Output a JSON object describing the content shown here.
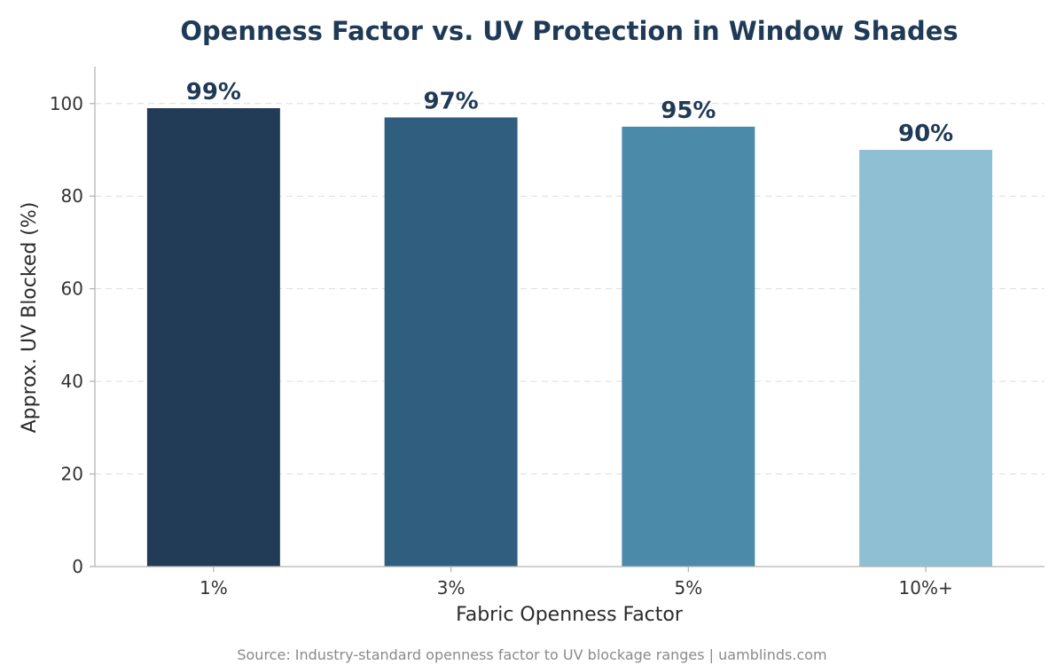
{
  "chart_data": {
    "type": "bar",
    "title": "Openness Factor vs. UV Protection in Window Shades",
    "xlabel": "Fabric Openness Factor",
    "ylabel": "Approx. UV Blocked (%)",
    "categories": [
      "1%",
      "3%",
      "5%",
      "10%+"
    ],
    "values": [
      99,
      97,
      95,
      90
    ],
    "value_labels": [
      "99%",
      "97%",
      "95%",
      "90%"
    ],
    "colors": [
      "#223b56",
      "#305e7f",
      "#4b8aa9",
      "#8fbfd3"
    ],
    "ylim": [
      0,
      108
    ],
    "yticks": [
      0,
      20,
      40,
      60,
      80,
      100
    ],
    "grid": true,
    "grid_axis": "y",
    "legend": "none"
  },
  "footer": {
    "source": "Source: Industry-standard openness factor to UV blockage ranges | uamblinds.com"
  }
}
